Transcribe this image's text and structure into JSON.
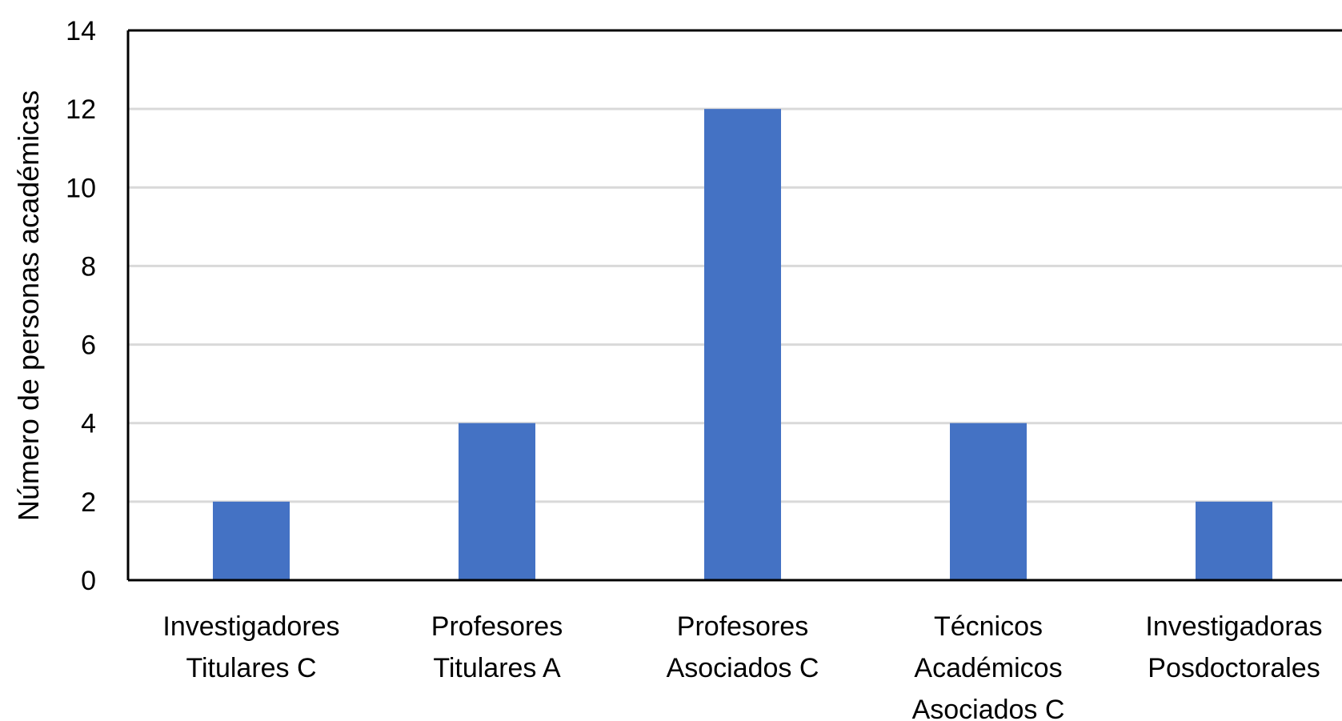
{
  "chart_data": {
    "type": "bar",
    "title": "",
    "xlabel": "",
    "ylabel": "Número de personas académicas",
    "ylim": [
      0,
      14
    ],
    "yticks": [
      0,
      2,
      4,
      6,
      8,
      10,
      12,
      14
    ],
    "grid": true,
    "bar_color": "#4472c4",
    "categories": [
      [
        "Investigadores",
        "Titulares C"
      ],
      [
        "Profesores",
        "Titulares A"
      ],
      [
        "Profesores",
        "Asociados C"
      ],
      [
        "Técnicos",
        "Académicos",
        "Asociados C"
      ],
      [
        "Investigadoras",
        "Posdoctorales"
      ]
    ],
    "values": [
      2,
      4,
      12,
      4,
      2
    ]
  }
}
